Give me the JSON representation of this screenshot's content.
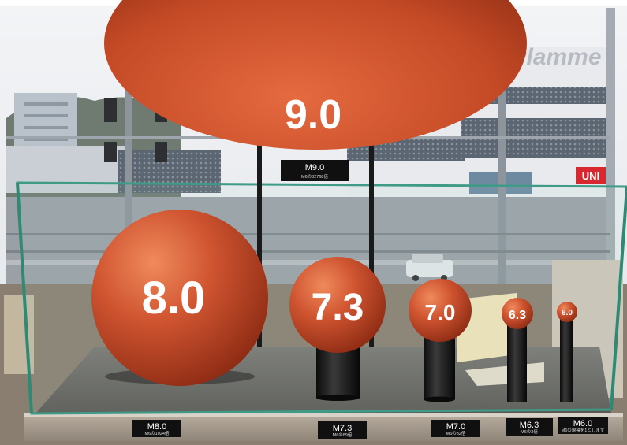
{
  "scene": {
    "description_free": true,
    "signs": {
      "store_sign": "Plamme",
      "uniqlo_sign": "UNI"
    },
    "spheres": [
      {
        "id": "m9",
        "label": "9.0",
        "plaque_main": "M9.0",
        "plaque_sub": "M6の32768倍",
        "color": "#c8502a"
      },
      {
        "id": "m8",
        "label": "8.0",
        "plaque_main": "M8.0",
        "plaque_sub": "M6の1024倍",
        "color": "#c8502a"
      },
      {
        "id": "m73",
        "label": "7.3",
        "plaque_main": "M7.3",
        "plaque_sub": "M6の89倍",
        "color": "#c8502a"
      },
      {
        "id": "m70",
        "label": "7.0",
        "plaque_main": "M7.0",
        "plaque_sub": "M6の32倍",
        "color": "#c8502a"
      },
      {
        "id": "m63",
        "label": "6.3",
        "plaque_main": "M6.3",
        "plaque_sub": "M6の3倍",
        "color": "#c8502a"
      },
      {
        "id": "m60",
        "label": "6.0",
        "plaque_main": "M6.0",
        "plaque_sub": "M6の規模を1とします",
        "color": "#c8502a"
      }
    ]
  }
}
